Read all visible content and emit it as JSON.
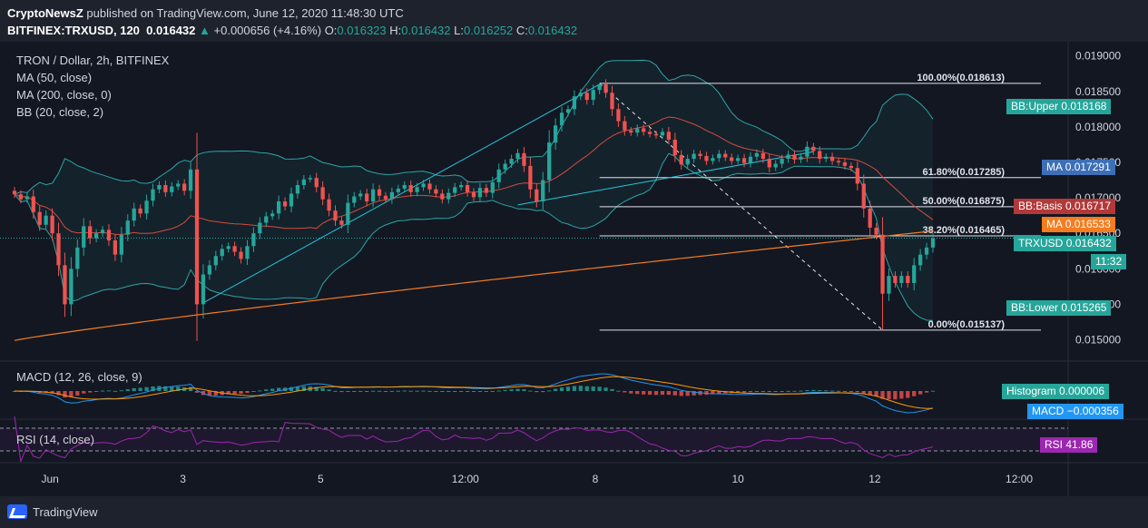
{
  "header": {
    "publisher": "CryptoNewsZ",
    "published_text": "published on TradingView.com, June 12, 2020 11:48:30 UTC",
    "symbol": "BITFINEX:TRXUSD, 120",
    "last": "0.016432",
    "change": "+0.000656 (+4.16%)",
    "o_label": "O:",
    "o": "0.016323",
    "h_label": "H:",
    "h": "0.016432",
    "l_label": "L:",
    "l": "0.016252",
    "c_label": "C:",
    "c": "0.016432"
  },
  "legend": {
    "title": "TRON / Dollar, 2h, BITFINEX",
    "ma50": "MA (50, close)",
    "ma200": "MA (200, close, 0)",
    "bb": "BB (20, close, 2)",
    "macd": "MACD (12, 26, close, 9)",
    "rsi": "RSI (14, close)"
  },
  "tags": {
    "bb_upper": "BB:Upper",
    "bb_upper_val": "0.018168",
    "ma": "MA",
    "ma_val": "0.017291",
    "bb_basis": "BB:Basis",
    "bb_basis_val": "0.016717",
    "ma2": "MA",
    "ma2_val": "0.016533",
    "trx": "TRXUSD",
    "trx_val": "0.016432",
    "time": "11:32",
    "bb_lower": "BB:Lower",
    "bb_lower_val": "0.015265",
    "histogram": "Histogram",
    "histogram_val": "0.000006",
    "macd": "MACD",
    "macd_val": "−0.000356",
    "rsi": "RSI",
    "rsi_val": "41.86"
  },
  "fib": [
    {
      "label": "100.00%(0.018613)",
      "level": 0.018613
    },
    {
      "label": "61.80%(0.017285)",
      "level": 0.017285
    },
    {
      "label": "50.00%(0.016875)",
      "level": 0.016875
    },
    {
      "label": "38.20%(0.016465)",
      "level": 0.016465
    },
    {
      "label": "0.00%(0.015137)",
      "level": 0.015137
    }
  ],
  "footer": {
    "brand": "TradingView"
  },
  "colors": {
    "up": "#26a69a",
    "down": "#ef5350",
    "bb": "#2ca5a5",
    "ma50": "#d64b3c",
    "ma200": "#f57c1f",
    "trend": "#26c6da",
    "macd": "#2196f3",
    "signal": "#ff9800",
    "rsi": "#9c27b0"
  },
  "chart_data": {
    "type": "candlestick",
    "title": "TRON / Dollar, 2h, BITFINEX",
    "x_tick_labels": [
      "Jun",
      "3",
      "5",
      "12:00",
      "8",
      "10",
      "12",
      "12:00"
    ],
    "y_tick_labels": [
      "0.019000",
      "0.018500",
      "0.018000",
      "0.017500",
      "0.017000",
      "0.016500",
      "0.016000",
      "0.015500",
      "0.015000"
    ],
    "ylim": [
      0.0147,
      0.0192
    ],
    "close_approx": [
      0.01705,
      0.01698,
      0.01702,
      0.0168,
      0.01662,
      0.01675,
      0.0165,
      0.01605,
      0.0155,
      0.016,
      0.0163,
      0.0166,
      0.01643,
      0.0165,
      0.01655,
      0.0164,
      0.0162,
      0.01648,
      0.01668,
      0.01685,
      0.01678,
      0.01696,
      0.01712,
      0.01718,
      0.01708,
      0.01716,
      0.0172,
      0.0171,
      0.0174,
      0.0155,
      0.01592,
      0.01605,
      0.01618,
      0.01628,
      0.01632,
      0.01624,
      0.01614,
      0.01632,
      0.0165,
      0.01665,
      0.01674,
      0.01678,
      0.01695,
      0.01688,
      0.01706,
      0.01718,
      0.01726,
      0.01728,
      0.01715,
      0.01698,
      0.01682,
      0.01668,
      0.01662,
      0.01693,
      0.01702,
      0.01706,
      0.01695,
      0.01712,
      0.01703,
      0.01698,
      0.01708,
      0.01713,
      0.01718,
      0.01708,
      0.01715,
      0.0172,
      0.01712,
      0.01706,
      0.01698,
      0.01707,
      0.01715,
      0.01718,
      0.01708,
      0.01701,
      0.01714,
      0.01707,
      0.01722,
      0.0174,
      0.01748,
      0.01755,
      0.01763,
      0.01745,
      0.01712,
      0.01695,
      0.01725,
      0.01778,
      0.01802,
      0.0182,
      0.01825,
      0.01843,
      0.01848,
      0.01838,
      0.01852,
      0.0186,
      0.01848,
      0.01825,
      0.01808,
      0.01795,
      0.01792,
      0.01798,
      0.01793,
      0.0179,
      0.01788,
      0.01793,
      0.01782,
      0.0176,
      0.01747,
      0.01755,
      0.01762,
      0.01759,
      0.01752,
      0.01756,
      0.01762,
      0.01757,
      0.01752,
      0.01756,
      0.01749,
      0.01758,
      0.01763,
      0.01755,
      0.01743,
      0.01748,
      0.01755,
      0.01761,
      0.01754,
      0.01758,
      0.01772,
      0.01766,
      0.01755,
      0.01758,
      0.01752,
      0.0175,
      0.01745,
      0.01742,
      0.0172,
      0.01685,
      0.01658,
      0.01648,
      0.01565,
      0.0159,
      0.0158,
      0.0159,
      0.0158,
      0.01605,
      0.0162,
      0.0163,
      0.01643
    ]
  }
}
